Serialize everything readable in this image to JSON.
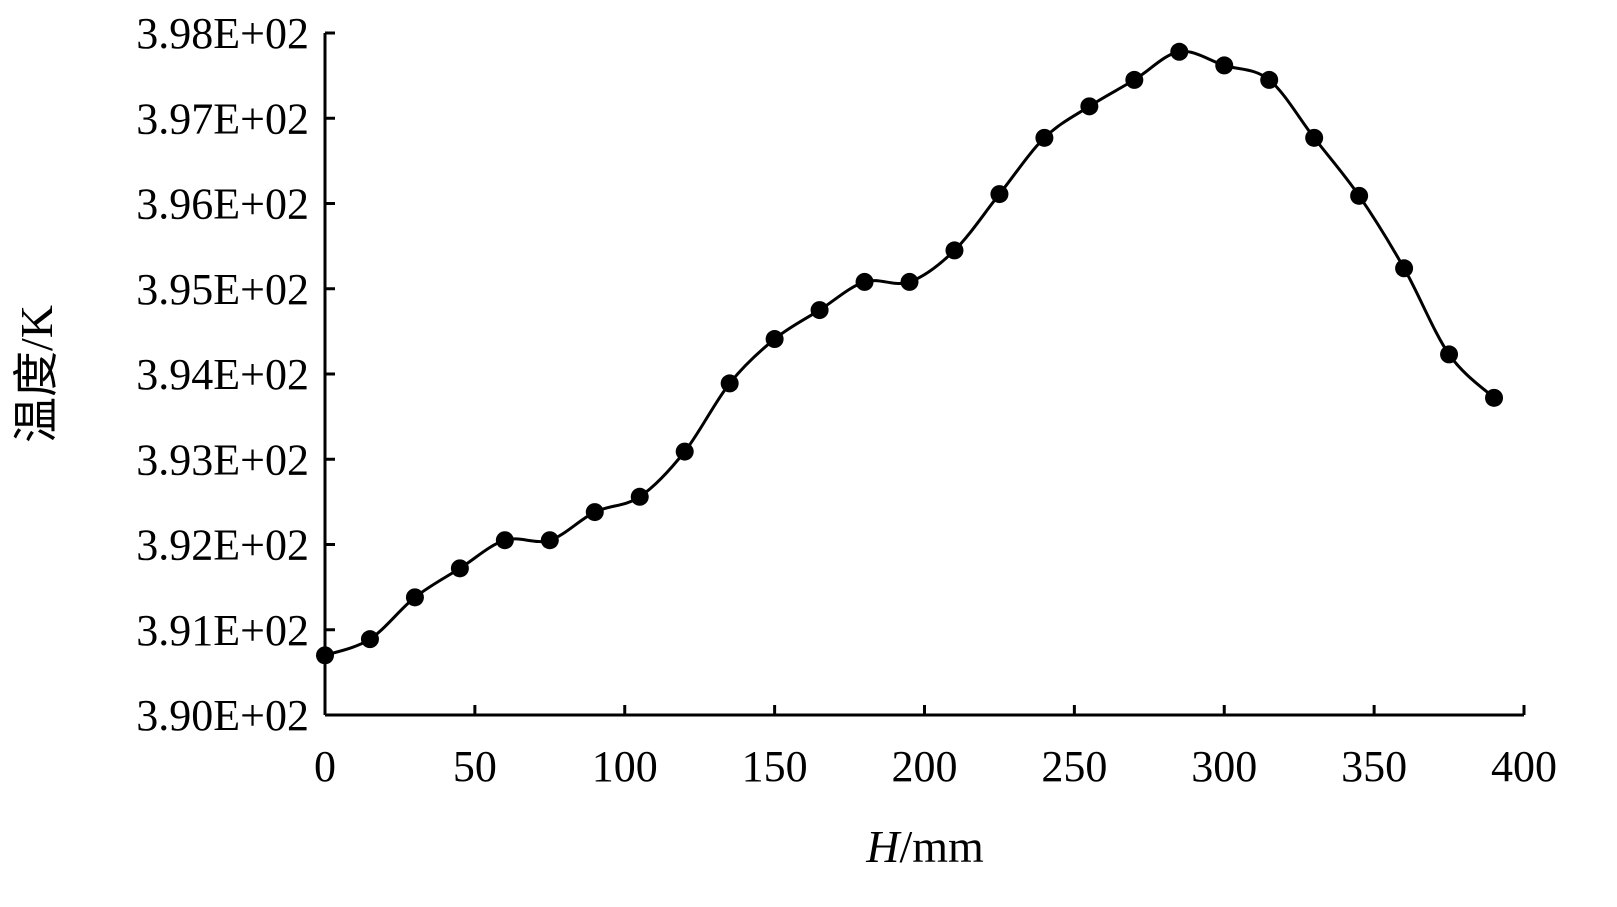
{
  "chart_data": {
    "type": "line",
    "title": "",
    "xlabel_italic": "H",
    "xlabel_unit": "/mm",
    "ylabel": "温度/K",
    "xlim": [
      0,
      400
    ],
    "ylim": [
      390,
      398
    ],
    "xticks": [
      0,
      50,
      100,
      150,
      200,
      250,
      300,
      350,
      400
    ],
    "xtick_labels": [
      "0",
      "50",
      "100",
      "150",
      "200",
      "250",
      "300",
      "350",
      "400"
    ],
    "yticks": [
      390,
      391,
      392,
      393,
      394,
      395,
      396,
      397,
      398
    ],
    "ytick_labels": [
      "3.90E+02",
      "3.91E+02",
      "3.92E+02",
      "3.93E+02",
      "3.94E+02",
      "3.95E+02",
      "3.96E+02",
      "3.97E+02",
      "3.98E+02"
    ],
    "grid": false,
    "series": [
      {
        "name": "温度",
        "marker": "circle",
        "color": "#000000",
        "x": [
          0,
          15,
          30,
          45,
          60,
          75,
          90,
          105,
          120,
          135,
          150,
          165,
          180,
          195,
          210,
          225,
          240,
          255,
          270,
          285,
          300,
          315,
          330,
          345,
          360,
          375,
          390
        ],
        "values": [
          390.7,
          390.89,
          391.38,
          391.72,
          392.05,
          392.05,
          392.38,
          392.56,
          393.09,
          393.89,
          394.41,
          394.75,
          395.08,
          395.08,
          395.45,
          396.11,
          396.77,
          397.14,
          397.45,
          397.78,
          397.62,
          397.45,
          396.77,
          396.09,
          395.24,
          394.23,
          393.72
        ]
      }
    ]
  }
}
